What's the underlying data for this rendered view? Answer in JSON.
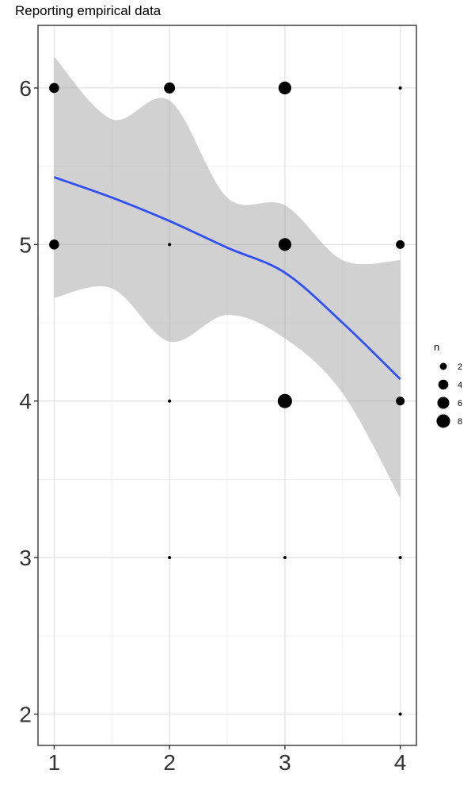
{
  "chart_data": {
    "type": "scatter",
    "title": "Reporting empirical data",
    "xlabel": "",
    "ylabel": "",
    "xlim": [
      0.86,
      4.14
    ],
    "ylim": [
      1.8,
      6.4
    ],
    "x_ticks": [
      1,
      2,
      3,
      4
    ],
    "y_ticks": [
      2,
      3,
      4,
      5,
      6
    ],
    "grid": true,
    "legend_position": "right",
    "legend": {
      "title": "n",
      "entries": [
        {
          "label": "2",
          "size": 2
        },
        {
          "label": "4",
          "size": 4
        },
        {
          "label": "6",
          "size": 6
        },
        {
          "label": "8",
          "size": 8
        }
      ]
    },
    "points": [
      {
        "x": 1,
        "y": 6,
        "n": 4
      },
      {
        "x": 1,
        "y": 5,
        "n": 4
      },
      {
        "x": 2,
        "y": 6,
        "n": 5
      },
      {
        "x": 2,
        "y": 5,
        "n": 1
      },
      {
        "x": 2,
        "y": 4,
        "n": 1
      },
      {
        "x": 2,
        "y": 3,
        "n": 1
      },
      {
        "x": 3,
        "y": 6,
        "n": 7
      },
      {
        "x": 3,
        "y": 5,
        "n": 7
      },
      {
        "x": 3,
        "y": 4,
        "n": 9
      },
      {
        "x": 3,
        "y": 3,
        "n": 1
      },
      {
        "x": 4,
        "y": 6,
        "n": 1
      },
      {
        "x": 4,
        "y": 5,
        "n": 3
      },
      {
        "x": 4,
        "y": 4,
        "n": 3
      },
      {
        "x": 4,
        "y": 3,
        "n": 1
      },
      {
        "x": 4,
        "y": 2,
        "n": 1
      }
    ],
    "smooth": {
      "color": "#3050f0",
      "x": [
        1.0,
        1.5,
        2.0,
        2.5,
        3.0,
        3.5,
        4.0
      ],
      "y": [
        5.43,
        5.3,
        5.15,
        4.98,
        4.82,
        4.5,
        4.14
      ],
      "lower": [
        4.66,
        4.72,
        4.38,
        4.55,
        4.4,
        4.05,
        3.38
      ],
      "upper": [
        6.2,
        5.8,
        5.92,
        5.3,
        5.25,
        4.9,
        4.9
      ]
    }
  }
}
